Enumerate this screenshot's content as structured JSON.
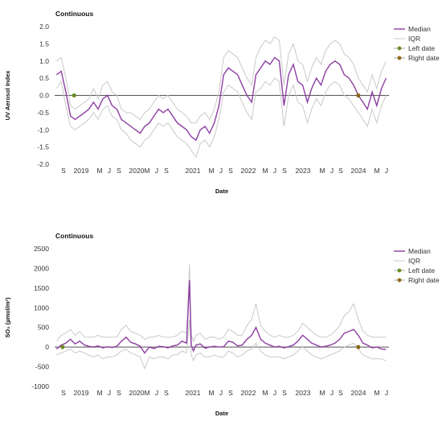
{
  "colors": {
    "median": "#8e3fa3",
    "iqr": "#c9c9c9",
    "zero_line": "#555555",
    "left_date_marker": "#6b8e23",
    "right_date_marker": "#8b6914"
  },
  "chart_data": [
    {
      "type": "line",
      "title": "Continuous",
      "ylabel": "UV Aerosol Index",
      "xlabel": "Date",
      "ylim": [
        -2.0,
        2.0
      ],
      "yticks": [
        "2.0",
        "1.5",
        "1.0",
        "0.5",
        "0.0",
        "-0.5",
        "-1.0",
        "-1.5",
        "-2.0"
      ],
      "xticks": [
        "S",
        "2019",
        "M",
        "J",
        "S",
        "2020",
        "M",
        "J",
        "S",
        "2021",
        "M",
        "J",
        "S",
        "2022",
        "M",
        "J",
        "S",
        "2023",
        "M",
        "J",
        "S",
        "2024",
        "M",
        "J"
      ],
      "legend": [
        "Median",
        "IQR",
        "Left date",
        "Right date"
      ],
      "legend_position": "top-right",
      "markers": {
        "left_date": "2018-11-25",
        "right_date": "2024-01-01"
      },
      "series": [
        {
          "name": "Median",
          "x": [
            "2018-08-01",
            "2018-09-01",
            "2018-10-01",
            "2018-11-01",
            "2018-12-01",
            "2019-01-01",
            "2019-02-01",
            "2019-03-01",
            "2019-04-01",
            "2019-05-01",
            "2019-06-01",
            "2019-07-01",
            "2019-08-01",
            "2019-09-01",
            "2019-10-01",
            "2019-11-01",
            "2019-12-01",
            "2020-01-01",
            "2020-02-01",
            "2020-03-01",
            "2020-04-01",
            "2020-05-01",
            "2020-06-01",
            "2020-07-01",
            "2020-08-01",
            "2020-09-01",
            "2020-10-01",
            "2020-11-01",
            "2020-12-01",
            "2021-01-01",
            "2021-02-01",
            "2021-03-01",
            "2021-04-01",
            "2021-05-01",
            "2021-06-01",
            "2021-07-01",
            "2021-08-01",
            "2021-09-01",
            "2021-10-01",
            "2021-11-01",
            "2021-12-01",
            "2022-01-01",
            "2022-02-01",
            "2022-03-01",
            "2022-04-01",
            "2022-05-01",
            "2022-06-01",
            "2022-07-01",
            "2022-08-01",
            "2022-09-01",
            "2022-10-01",
            "2022-11-01",
            "2022-12-01",
            "2023-01-01",
            "2023-02-01",
            "2023-03-01",
            "2023-04-01",
            "2023-05-01",
            "2023-06-01",
            "2023-07-01",
            "2023-08-01",
            "2023-09-01",
            "2023-10-01",
            "2023-11-01",
            "2023-12-01",
            "2024-01-01",
            "2024-02-01",
            "2024-03-01",
            "2024-04-01",
            "2024-05-01",
            "2024-06-01",
            "2024-07-01"
          ],
          "y": [
            0.6,
            0.7,
            0.1,
            -0.6,
            -0.7,
            -0.6,
            -0.5,
            -0.4,
            -0.2,
            -0.4,
            -0.1,
            0.0,
            -0.3,
            -0.4,
            -0.7,
            -0.8,
            -0.9,
            -1.0,
            -1.1,
            -0.9,
            -0.8,
            -0.6,
            -0.4,
            -0.5,
            -0.4,
            -0.6,
            -0.8,
            -0.9,
            -1.0,
            -1.2,
            -1.3,
            -1.0,
            -0.9,
            -1.1,
            -0.8,
            -0.3,
            0.6,
            0.8,
            0.7,
            0.6,
            0.3,
            0.0,
            -0.2,
            0.6,
            0.8,
            1.0,
            0.9,
            1.1,
            1.0,
            -0.3,
            0.6,
            0.9,
            0.4,
            0.3,
            -0.2,
            0.2,
            0.5,
            0.3,
            0.7,
            0.9,
            1.0,
            0.9,
            0.6,
            0.5,
            0.3,
            0.0,
            -0.2,
            -0.4,
            0.1,
            -0.3,
            0.2,
            0.5
          ]
        },
        {
          "name": "IQR",
          "x": [
            "2018-08-01",
            "2018-09-01",
            "2018-10-01",
            "2018-11-01",
            "2018-12-01",
            "2019-01-01",
            "2019-02-01",
            "2019-03-01",
            "2019-04-01",
            "2019-05-01",
            "2019-06-01",
            "2019-07-01",
            "2019-08-01",
            "2019-09-01",
            "2019-10-01",
            "2019-11-01",
            "2019-12-01",
            "2020-01-01",
            "2020-02-01",
            "2020-03-01",
            "2020-04-01",
            "2020-05-01",
            "2020-06-01",
            "2020-07-01",
            "2020-08-01",
            "2020-09-01",
            "2020-10-01",
            "2020-11-01",
            "2020-12-01",
            "2021-01-01",
            "2021-02-01",
            "2021-03-01",
            "2021-04-01",
            "2021-05-01",
            "2021-06-01",
            "2021-07-01",
            "2021-08-01",
            "2021-09-01",
            "2021-10-01",
            "2021-11-01",
            "2021-12-01",
            "2022-01-01",
            "2022-02-01",
            "2022-03-01",
            "2022-04-01",
            "2022-05-01",
            "2022-06-01",
            "2022-07-01",
            "2022-08-01",
            "2022-09-01",
            "2022-10-01",
            "2022-11-01",
            "2022-12-01",
            "2023-01-01",
            "2023-02-01",
            "2023-03-01",
            "2023-04-01",
            "2023-05-01",
            "2023-06-01",
            "2023-07-01",
            "2023-08-01",
            "2023-09-01",
            "2023-10-01",
            "2023-11-01",
            "2023-12-01",
            "2024-01-01",
            "2024-02-01",
            "2024-03-01",
            "2024-04-01",
            "2024-05-01",
            "2024-06-01",
            "2024-07-01"
          ],
          "lower": [
            0.2,
            0.4,
            -0.3,
            -0.9,
            -1.0,
            -0.9,
            -0.8,
            -0.7,
            -0.5,
            -0.7,
            -0.4,
            -0.3,
            -0.6,
            -0.7,
            -1.0,
            -1.1,
            -1.3,
            -1.4,
            -1.5,
            -1.3,
            -1.2,
            -1.0,
            -0.8,
            -0.9,
            -0.8,
            -1.0,
            -1.2,
            -1.3,
            -1.4,
            -1.6,
            -1.8,
            -1.4,
            -1.3,
            -1.5,
            -1.2,
            -0.7,
            0.1,
            0.3,
            0.2,
            0.1,
            -0.2,
            -0.5,
            -0.7,
            0.1,
            0.2,
            0.4,
            0.3,
            0.5,
            0.4,
            -0.9,
            0.0,
            0.3,
            -0.2,
            -0.3,
            -0.8,
            -0.4,
            -0.1,
            -0.3,
            0.1,
            0.3,
            0.4,
            0.3,
            0.0,
            -0.1,
            -0.3,
            -0.5,
            -0.7,
            -0.9,
            -0.4,
            -0.8,
            -0.3,
            0.0
          ],
          "upper": [
            1.0,
            1.1,
            0.5,
            -0.3,
            -0.4,
            -0.3,
            -0.2,
            -0.1,
            0.2,
            -0.1,
            0.3,
            0.4,
            0.1,
            0.0,
            -0.4,
            -0.5,
            -0.5,
            -0.6,
            -0.7,
            -0.5,
            -0.4,
            -0.2,
            0.0,
            -0.1,
            0.0,
            -0.2,
            -0.4,
            -0.5,
            -0.6,
            -0.8,
            -0.8,
            -0.6,
            -0.5,
            -0.7,
            -0.4,
            0.1,
            1.1,
            1.3,
            1.2,
            1.1,
            0.8,
            0.5,
            0.3,
            1.1,
            1.4,
            1.6,
            1.5,
            1.7,
            1.6,
            0.3,
            1.2,
            1.5,
            1.0,
            0.9,
            0.4,
            0.8,
            1.1,
            0.9,
            1.3,
            1.5,
            1.6,
            1.5,
            1.2,
            1.1,
            0.9,
            0.5,
            0.3,
            0.1,
            0.6,
            0.2,
            0.7,
            1.0
          ]
        }
      ]
    },
    {
      "type": "line",
      "title": "Continuous",
      "ylabel": "SO₂ (µmol/m²)",
      "xlabel": "Date",
      "ylim": [
        -1000,
        2500
      ],
      "yticks": [
        "2500",
        "2000",
        "1500",
        "1000",
        "500",
        "0",
        "-500",
        "-1000"
      ],
      "xticks": [
        "S",
        "2019",
        "M",
        "J",
        "S",
        "2020",
        "M",
        "J",
        "S",
        "2021",
        "M",
        "J",
        "S",
        "2022",
        "M",
        "J",
        "S",
        "2023",
        "M",
        "J",
        "S",
        "2024",
        "M",
        "J"
      ],
      "legend": [
        "Median",
        "IQR",
        "Left date",
        "Right date"
      ],
      "legend_position": "top-right",
      "markers": {
        "left_date": "2018-09-10",
        "right_date": "2024-01-01"
      },
      "series": [
        {
          "name": "Median",
          "x": [
            "2018-08-01",
            "2018-09-01",
            "2018-10-01",
            "2018-11-01",
            "2018-12-01",
            "2019-01-01",
            "2019-02-01",
            "2019-03-01",
            "2019-04-01",
            "2019-05-01",
            "2019-06-01",
            "2019-07-01",
            "2019-08-01",
            "2019-09-01",
            "2019-10-01",
            "2019-11-01",
            "2019-12-01",
            "2020-01-01",
            "2020-02-01",
            "2020-03-01",
            "2020-04-01",
            "2020-05-01",
            "2020-06-01",
            "2020-07-01",
            "2020-08-01",
            "2020-09-01",
            "2020-10-01",
            "2020-11-01",
            "2020-12-01",
            "2020-12-20",
            "2021-01-01",
            "2021-01-15",
            "2021-02-01",
            "2021-03-01",
            "2021-04-01",
            "2021-05-01",
            "2021-06-01",
            "2021-07-01",
            "2021-08-01",
            "2021-09-01",
            "2021-10-01",
            "2021-11-01",
            "2021-12-01",
            "2022-01-01",
            "2022-02-01",
            "2022-03-01",
            "2022-04-01",
            "2022-05-01",
            "2022-06-01",
            "2022-07-01",
            "2022-08-01",
            "2022-09-01",
            "2022-10-01",
            "2022-11-01",
            "2022-12-01",
            "2023-01-01",
            "2023-02-01",
            "2023-03-01",
            "2023-04-01",
            "2023-05-01",
            "2023-06-01",
            "2023-07-01",
            "2023-08-01",
            "2023-09-01",
            "2023-10-01",
            "2023-11-01",
            "2023-12-01",
            "2024-01-01",
            "2024-02-01",
            "2024-03-01",
            "2024-04-01",
            "2024-05-01",
            "2024-06-01",
            "2024-07-01"
          ],
          "y": [
            -50,
            50,
            100,
            200,
            80,
            150,
            50,
            20,
            0,
            30,
            -20,
            10,
            -10,
            20,
            150,
            250,
            120,
            80,
            20,
            -150,
            0,
            -40,
            20,
            10,
            -20,
            30,
            50,
            150,
            100,
            1700,
            50,
            -100,
            50,
            80,
            -30,
            0,
            20,
            0,
            10,
            150,
            120,
            30,
            50,
            200,
            300,
            500,
            200,
            100,
            50,
            0,
            20,
            -20,
            10,
            50,
            150,
            300,
            200,
            100,
            50,
            0,
            20,
            50,
            100,
            200,
            350,
            400,
            450,
            300,
            100,
            50,
            -20,
            0,
            -50,
            -60
          ]
        },
        {
          "name": "IQR",
          "x": [
            "2018-08-01",
            "2018-09-01",
            "2018-10-01",
            "2018-11-01",
            "2018-12-01",
            "2019-01-01",
            "2019-02-01",
            "2019-03-01",
            "2019-04-01",
            "2019-05-01",
            "2019-06-01",
            "2019-07-01",
            "2019-08-01",
            "2019-09-01",
            "2019-10-01",
            "2019-11-01",
            "2019-12-01",
            "2020-01-01",
            "2020-02-01",
            "2020-03-01",
            "2020-04-01",
            "2020-05-01",
            "2020-06-01",
            "2020-07-01",
            "2020-08-01",
            "2020-09-01",
            "2020-10-01",
            "2020-11-01",
            "2020-12-01",
            "2020-12-20",
            "2021-01-01",
            "2021-01-15",
            "2021-02-01",
            "2021-03-01",
            "2021-04-01",
            "2021-05-01",
            "2021-06-01",
            "2021-07-01",
            "2021-08-01",
            "2021-09-01",
            "2021-10-01",
            "2021-11-01",
            "2021-12-01",
            "2022-01-01",
            "2022-02-01",
            "2022-03-01",
            "2022-04-01",
            "2022-05-01",
            "2022-06-01",
            "2022-07-01",
            "2022-08-01",
            "2022-09-01",
            "2022-10-01",
            "2022-11-01",
            "2022-12-01",
            "2023-01-01",
            "2023-02-01",
            "2023-03-01",
            "2023-04-01",
            "2023-05-01",
            "2023-06-01",
            "2023-07-01",
            "2023-08-01",
            "2023-09-01",
            "2023-10-01",
            "2023-11-01",
            "2023-12-01",
            "2024-01-01",
            "2024-02-01",
            "2024-03-01",
            "2024-04-01",
            "2024-05-01",
            "2024-06-01",
            "2024-07-01"
          ],
          "lower": [
            -200,
            -150,
            -100,
            -50,
            -150,
            -100,
            -150,
            -200,
            -250,
            -200,
            -300,
            -250,
            -250,
            -200,
            -100,
            -50,
            -150,
            -200,
            -250,
            -550,
            -250,
            -300,
            -250,
            -250,
            -300,
            -200,
            -200,
            -100,
            -150,
            700,
            -200,
            -350,
            -200,
            -150,
            -250,
            -250,
            -200,
            -250,
            -250,
            -100,
            -150,
            -250,
            -200,
            -100,
            -50,
            100,
            -100,
            -200,
            -250,
            -250,
            -250,
            -300,
            -250,
            -200,
            -100,
            0,
            -100,
            -200,
            -250,
            -300,
            -250,
            -200,
            -150,
            -100,
            0,
            50,
            100,
            -50,
            -200,
            -250,
            -300,
            -300,
            -300,
            -350
          ],
          "upper": [
            150,
            300,
            350,
            450,
            300,
            400,
            250,
            250,
            250,
            300,
            250,
            250,
            250,
            250,
            450,
            550,
            400,
            350,
            300,
            200,
            250,
            250,
            300,
            250,
            250,
            250,
            300,
            400,
            350,
            2100,
            300,
            150,
            300,
            350,
            200,
            250,
            250,
            200,
            250,
            450,
            400,
            300,
            300,
            550,
            700,
            1100,
            550,
            400,
            300,
            250,
            300,
            250,
            250,
            300,
            400,
            600,
            500,
            400,
            300,
            250,
            250,
            300,
            400,
            550,
            800,
            900,
            1100,
            700,
            400,
            300,
            250,
            250,
            250,
            250
          ]
        }
      ]
    }
  ]
}
